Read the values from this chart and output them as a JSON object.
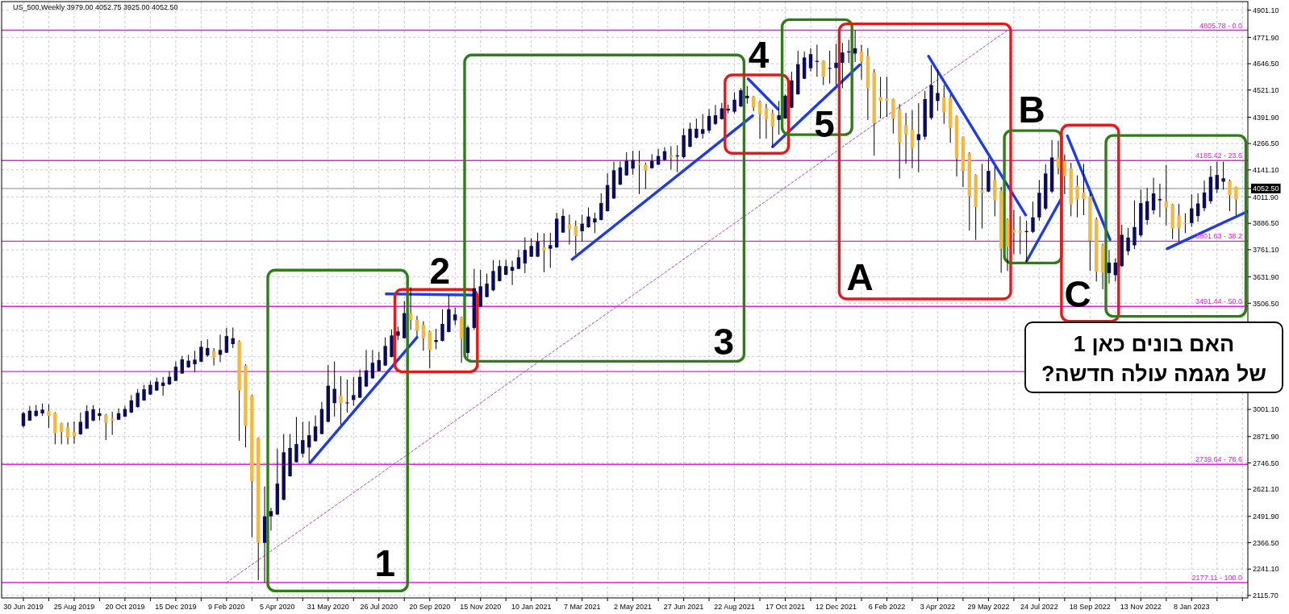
{
  "chart_data": {
    "type": "candlestick",
    "title": "US_500,Weekly  3979.00 4052.75 3925.00 4052.50",
    "xlim": [
      "2019-06-06",
      "2023-03-11"
    ],
    "ylim": [
      2104,
      4942
    ],
    "xticks": [
      {
        "value": "2019-06-30",
        "label": "30 Jun 2019"
      },
      {
        "value": "2019-07-28",
        "label": null
      },
      {
        "value": "2019-08-25",
        "label": "25 Aug 2019"
      },
      {
        "value": "2019-09-22",
        "label": null
      },
      {
        "value": "2019-10-20",
        "label": "20 Oct 2019"
      },
      {
        "value": "2019-11-17",
        "label": null
      },
      {
        "value": "2019-12-15",
        "label": "15 Dec 2019"
      },
      {
        "value": "2020-01-12",
        "label": null
      },
      {
        "value": "2020-02-09",
        "label": "9 Feb 2020"
      },
      {
        "value": "2020-03-08",
        "label": null
      },
      {
        "value": "2020-04-05",
        "label": "5 Apr 2020"
      },
      {
        "value": "2020-05-03",
        "label": null
      },
      {
        "value": "2020-05-31",
        "label": "31 May 2020"
      },
      {
        "value": "2020-06-28",
        "label": null
      },
      {
        "value": "2020-07-26",
        "label": "26 Jul 2020"
      },
      {
        "value": "2020-08-23",
        "label": null
      },
      {
        "value": "2020-09-20",
        "label": "20 Sep 2020"
      },
      {
        "value": "2020-10-18",
        "label": null
      },
      {
        "value": "2020-11-15",
        "label": "15 Nov 2020"
      },
      {
        "value": "2020-12-13",
        "label": null
      },
      {
        "value": "2021-01-10",
        "label": "10 Jan 2021"
      },
      {
        "value": "2021-02-07",
        "label": null
      },
      {
        "value": "2021-03-07",
        "label": "7 Mar 2021"
      },
      {
        "value": "2021-04-04",
        "label": null
      },
      {
        "value": "2021-05-02",
        "label": "2 May 2021"
      },
      {
        "value": "2021-05-30",
        "label": null
      },
      {
        "value": "2021-06-27",
        "label": "27 Jun 2021"
      },
      {
        "value": "2021-07-25",
        "label": null
      },
      {
        "value": "2021-08-22",
        "label": "22 Aug 2021"
      },
      {
        "value": "2021-09-19",
        "label": null
      },
      {
        "value": "2021-10-17",
        "label": "17 Oct 2021"
      },
      {
        "value": "2021-11-14",
        "label": null
      },
      {
        "value": "2021-12-12",
        "label": "12 Dec 2021"
      },
      {
        "value": "2022-01-09",
        "label": null
      },
      {
        "value": "2022-02-06",
        "label": "6 Feb 2022"
      },
      {
        "value": "2022-03-06",
        "label": null
      },
      {
        "value": "2022-04-03",
        "label": "3 Apr 2022"
      },
      {
        "value": "2022-05-01",
        "label": null
      },
      {
        "value": "2022-05-29",
        "label": "29 May 2022"
      },
      {
        "value": "2022-06-26",
        "label": null
      },
      {
        "value": "2022-07-24",
        "label": "24 Jul 2022"
      },
      {
        "value": "2022-08-21",
        "label": null
      },
      {
        "value": "2022-09-18",
        "label": "18 Sep 2022"
      },
      {
        "value": "2022-10-16",
        "label": null
      },
      {
        "value": "2022-11-13",
        "label": "13 Nov 2022"
      },
      {
        "value": "2022-12-11",
        "label": null
      },
      {
        "value": "2023-01-08",
        "label": "8 Jan 2023"
      },
      {
        "value": "2023-02-05",
        "label": null
      },
      {
        "value": "2023-03-05",
        "label": null
      }
    ],
    "yticks": [
      {
        "value": 2115.7,
        "label": "2115.70"
      },
      {
        "value": 2241.1,
        "label": "2241.10"
      },
      {
        "value": 2366.5,
        "label": "2366.50"
      },
      {
        "value": 2491.9,
        "label": "2491.90"
      },
      {
        "value": 2621.1,
        "label": "2621.10"
      },
      {
        "value": 2746.5,
        "label": "2746.50"
      },
      {
        "value": 2871.9,
        "label": "2871.90"
      },
      {
        "value": 3001.1,
        "label": "3001.10"
      },
      {
        "value": 3126.5,
        "label": null
      },
      {
        "value": 3251.9,
        "label": null
      },
      {
        "value": 3377.3,
        "label": null
      },
      {
        "value": 3506.5,
        "label": "3506.50"
      },
      {
        "value": 3631.9,
        "label": "3631.90"
      },
      {
        "value": 3761.1,
        "label": "3761.10"
      },
      {
        "value": 3886.5,
        "label": "3886.50"
      },
      {
        "value": 4011.9,
        "label": "4011.90"
      },
      {
        "value": 4052.5,
        "label": "4052.50"
      },
      {
        "value": 4141.1,
        "label": "4141.10"
      },
      {
        "value": 4266.5,
        "label": "4266.50"
      },
      {
        "value": 4391.9,
        "label": "4391.90"
      },
      {
        "value": 4521.1,
        "label": "4521.10"
      },
      {
        "value": 4646.5,
        "label": "4646.50"
      },
      {
        "value": 4771.9,
        "label": "4771.90"
      },
      {
        "value": 4901.1,
        "label": "4901.10"
      }
    ],
    "grid": true,
    "ref_lines": [
      {
        "axis": "y",
        "value": 4805.78,
        "label": "4805.78 - 0.0",
        "color": "#e01fe0"
      },
      {
        "axis": "y",
        "value": 4185.42,
        "label": "4185.42 - 23.6",
        "color": "#e01fe0"
      },
      {
        "axis": "y",
        "value": 3801.63,
        "label": "3801.63 - 38.2",
        "color": "#e01fe0"
      },
      {
        "axis": "y",
        "value": 3491.44,
        "label": "3491.44 - 50.0",
        "color": "#e01fe0"
      },
      {
        "axis": "y",
        "value": 3181.25,
        "color": "#e01fe0"
      },
      {
        "axis": "y",
        "value": 2739.64,
        "label": "2739.64 - 78.6",
        "color": "#e01fe0"
      },
      {
        "axis": "y",
        "value": 2177.11,
        "label": "2177.11 - 100.0",
        "color": "#e01fe0"
      },
      {
        "axis": "y",
        "value": 4052.5,
        "color": "#b4b4b4"
      }
    ],
    "series": [
      {
        "x": [
          "2019-06-30",
          "2019-07-07",
          "2019-07-14",
          "2019-07-21",
          "2019-07-28",
          "2019-08-04",
          "2019-08-11",
          "2019-08-18",
          "2019-08-25",
          "2019-09-01",
          "2019-09-08",
          "2019-09-15",
          "2019-09-22",
          "2019-09-29",
          "2019-10-06",
          "2019-10-13",
          "2019-10-20",
          "2019-10-27",
          "2019-11-03",
          "2019-11-10",
          "2019-11-17",
          "2019-11-24",
          "2019-12-01",
          "2019-12-08",
          "2019-12-15",
          "2019-12-22",
          "2019-12-29",
          "2020-01-05",
          "2020-01-12",
          "2020-01-19",
          "2020-01-26",
          "2020-02-02",
          "2020-02-09",
          "2020-02-16",
          "2020-02-23",
          "2020-03-01",
          "2020-03-08",
          "2020-03-15",
          "2020-03-22",
          "2020-03-29",
          "2020-04-05",
          "2020-04-12",
          "2020-04-19",
          "2020-04-26",
          "2020-05-03",
          "2020-05-10",
          "2020-05-17",
          "2020-05-24",
          "2020-05-31",
          "2020-06-07",
          "2020-06-14",
          "2020-06-21",
          "2020-06-28",
          "2020-07-05",
          "2020-07-12",
          "2020-07-19",
          "2020-07-26",
          "2020-08-02",
          "2020-08-09",
          "2020-08-16",
          "2020-08-23",
          "2020-08-30",
          "2020-09-06",
          "2020-09-13",
          "2020-09-20",
          "2020-09-27",
          "2020-10-04",
          "2020-10-11",
          "2020-10-18",
          "2020-10-25",
          "2020-11-01",
          "2020-11-08",
          "2020-11-15",
          "2020-11-22",
          "2020-11-29",
          "2020-12-06",
          "2020-12-13",
          "2020-12-20",
          "2020-12-27",
          "2021-01-03",
          "2021-01-10",
          "2021-01-17",
          "2021-01-24",
          "2021-01-31",
          "2021-02-07",
          "2021-02-14",
          "2021-02-21",
          "2021-02-28",
          "2021-03-07",
          "2021-03-14",
          "2021-03-21",
          "2021-03-28",
          "2021-04-04",
          "2021-04-11",
          "2021-04-18",
          "2021-04-25",
          "2021-05-02",
          "2021-05-09",
          "2021-05-16",
          "2021-05-23",
          "2021-05-30",
          "2021-06-06",
          "2021-06-13",
          "2021-06-20",
          "2021-06-27",
          "2021-07-04",
          "2021-07-11",
          "2021-07-18",
          "2021-07-25",
          "2021-08-01",
          "2021-08-08",
          "2021-08-15",
          "2021-08-22",
          "2021-08-29",
          "2021-09-05",
          "2021-09-12",
          "2021-09-19",
          "2021-09-26",
          "2021-10-03",
          "2021-10-10",
          "2021-10-17",
          "2021-10-24",
          "2021-10-31",
          "2021-11-07",
          "2021-11-14",
          "2021-11-21",
          "2021-11-28",
          "2021-12-05",
          "2021-12-12",
          "2021-12-19",
          "2021-12-26",
          "2022-01-02",
          "2022-01-09",
          "2022-01-16",
          "2022-01-23",
          "2022-01-30",
          "2022-02-06",
          "2022-02-13",
          "2022-02-20",
          "2022-02-27",
          "2022-03-06",
          "2022-03-13",
          "2022-03-20",
          "2022-03-27",
          "2022-04-03",
          "2022-04-10",
          "2022-04-17",
          "2022-04-24",
          "2022-05-01",
          "2022-05-08",
          "2022-05-15",
          "2022-05-22",
          "2022-05-29",
          "2022-06-05",
          "2022-06-12",
          "2022-06-19",
          "2022-06-26",
          "2022-07-03",
          "2022-07-10",
          "2022-07-17",
          "2022-07-24",
          "2022-07-31",
          "2022-08-07",
          "2022-08-14",
          "2022-08-21",
          "2022-08-28",
          "2022-09-04",
          "2022-09-11",
          "2022-09-18",
          "2022-09-25",
          "2022-10-02",
          "2022-10-09",
          "2022-10-16",
          "2022-10-23",
          "2022-10-30",
          "2022-11-06",
          "2022-11-13",
          "2022-11-20",
          "2022-11-27",
          "2022-12-04",
          "2022-12-11",
          "2022-12-18",
          "2022-12-25",
          "2023-01-01",
          "2023-01-08",
          "2023-01-15",
          "2023-01-22",
          "2023-01-29",
          "2023-02-05",
          "2023-02-12",
          "2023-02-19",
          "2023-02-26"
        ],
        "ohlc": [
          [
            2922,
            2990,
            2915,
            2983
          ],
          [
            2948,
            3018,
            2946,
            2995
          ],
          [
            2970,
            3022,
            2966,
            2995
          ],
          [
            2982,
            3029,
            2970,
            3000
          ],
          [
            2993,
            3025,
            2913,
            2970
          ],
          [
            2985,
            2988,
            2835,
            2888
          ],
          [
            2935,
            2938,
            2835,
            2894
          ],
          [
            2916,
            2939,
            2835,
            2867
          ],
          [
            2893,
            2944,
            2838,
            2873
          ],
          [
            2883,
            2986,
            2880,
            2942
          ],
          [
            2910,
            3021,
            2908,
            2993
          ],
          [
            2948,
            3021,
            2944,
            3002
          ],
          [
            2970,
            3006,
            2948,
            2983
          ],
          [
            2976,
            2980,
            2855,
            2938
          ],
          [
            2957,
            2990,
            2880,
            2948
          ],
          [
            2952,
            3006,
            2950,
            2983
          ],
          [
            2967,
            3018,
            2965,
            3003
          ],
          [
            2986,
            3069,
            2984,
            3044
          ],
          [
            3012,
            3097,
            3010,
            3080
          ],
          [
            3044,
            3118,
            3042,
            3097
          ],
          [
            3072,
            3136,
            3070,
            3118
          ],
          [
            3091,
            3152,
            3089,
            3133
          ],
          [
            3113,
            3156,
            3067,
            3129
          ],
          [
            3120,
            3182,
            3118,
            3156
          ],
          [
            3137,
            3229,
            3135,
            3204
          ],
          [
            3172,
            3255,
            3170,
            3239
          ],
          [
            3201,
            3261,
            3199,
            3233
          ],
          [
            3216,
            3280,
            3178,
            3238
          ],
          [
            3228,
            3327,
            3226,
            3299
          ],
          [
            3258,
            3335,
            3251,
            3293
          ],
          [
            3280,
            3293,
            3210,
            3248
          ],
          [
            3261,
            3357,
            3226,
            3284
          ],
          [
            3271,
            3389,
            3269,
            3350
          ],
          [
            3312,
            3391,
            3293,
            3340
          ],
          [
            3325,
            3330,
            2852,
            3092
          ],
          [
            3210,
            3216,
            2820,
            2922
          ],
          [
            3066,
            3070,
            2392,
            2660
          ],
          [
            2865,
            2868,
            2188,
            2366
          ],
          [
            2366,
            2635,
            2177,
            2492
          ],
          [
            2492,
            2533,
            2424,
            2517
          ],
          [
            2501,
            2814,
            2499,
            2648
          ],
          [
            2571,
            2884,
            2569,
            2797
          ],
          [
            2683,
            2884,
            2681,
            2818
          ],
          [
            2750,
            2965,
            2748,
            2836
          ],
          [
            2791,
            2942,
            2773,
            2855
          ],
          [
            2820,
            2944,
            2750,
            2878
          ],
          [
            2850,
            2973,
            2848,
            2920
          ],
          [
            2884,
            3037,
            2882,
            3003
          ],
          [
            2942,
            3212,
            2940,
            3114
          ],
          [
            3031,
            3229,
            2967,
            3099
          ],
          [
            3066,
            3159,
            2929,
            3031
          ],
          [
            3030,
            3143,
            2986,
            3034
          ],
          [
            3046,
            3156,
            3018,
            3069
          ],
          [
            3057,
            3191,
            3055,
            3156
          ],
          [
            3110,
            3284,
            3108,
            3187
          ],
          [
            3149,
            3284,
            3147,
            3223
          ],
          [
            3184,
            3274,
            3182,
            3236
          ],
          [
            3210,
            3344,
            3208,
            3303
          ],
          [
            3251,
            3382,
            3249,
            3353
          ],
          [
            3352,
            3395,
            3330,
            3372
          ],
          [
            3340,
            3517,
            3338,
            3459
          ],
          [
            3459,
            3583,
            3380,
            3427
          ],
          [
            3427,
            3446,
            3350,
            3376
          ],
          [
            3402,
            3421,
            3280,
            3340
          ],
          [
            3372,
            3376,
            3197,
            3284
          ],
          [
            3322,
            3385,
            3287,
            3331
          ],
          [
            3327,
            3478,
            3325,
            3408
          ],
          [
            3370,
            3545,
            3368,
            3478
          ],
          [
            3425,
            3485,
            3402,
            3453
          ],
          [
            3440,
            3443,
            3223,
            3338
          ],
          [
            3270,
            3400,
            3248,
            3391
          ],
          [
            3389,
            3670,
            3380,
            3578
          ],
          [
            3491,
            3665,
            3489,
            3587
          ],
          [
            3536,
            3647,
            3534,
            3600
          ],
          [
            3568,
            3711,
            3563,
            3660
          ],
          [
            3612,
            3711,
            3610,
            3683
          ],
          [
            3642,
            3713,
            3640,
            3683
          ],
          [
            3661,
            3709,
            3593,
            3679
          ],
          [
            3670,
            3762,
            3668,
            3725
          ],
          [
            3696,
            3820,
            3650,
            3760
          ],
          [
            3728,
            3816,
            3726,
            3779
          ],
          [
            3728,
            3842,
            3726,
            3800
          ],
          [
            3772,
            3839,
            3654,
            3757
          ],
          [
            3766,
            3842,
            3675,
            3783
          ],
          [
            3772,
            3937,
            3770,
            3909
          ],
          [
            3843,
            3955,
            3841,
            3922
          ],
          [
            3881,
            3928,
            3785,
            3859
          ],
          [
            3874,
            3900,
            3738,
            3826
          ],
          [
            3849,
            3927,
            3800,
            3885
          ],
          [
            3868,
            3962,
            3866,
            3919
          ],
          [
            3891,
            3938,
            3840,
            3910
          ],
          [
            3903,
            4030,
            3901,
            3983
          ],
          [
            3945,
            4125,
            3943,
            4069
          ],
          [
            4005,
            4180,
            4003,
            4139
          ],
          [
            4071,
            4181,
            4069,
            4153
          ],
          [
            4115,
            4225,
            4113,
            4184
          ],
          [
            4147,
            4232,
            4118,
            4188
          ],
          [
            4171,
            4232,
            4026,
            4165
          ],
          [
            4166,
            4176,
            4050,
            4138
          ],
          [
            4149,
            4216,
            4147,
            4184
          ],
          [
            4166,
            4241,
            4164,
            4207
          ],
          [
            4188,
            4249,
            4186,
            4230
          ],
          [
            4209,
            4254,
            4143,
            4200
          ],
          [
            4205,
            4258,
            4130,
            4210
          ],
          [
            4202,
            4338,
            4195,
            4306
          ],
          [
            4251,
            4366,
            4249,
            4337
          ],
          [
            4294,
            4385,
            4290,
            4337
          ],
          [
            4313,
            4407,
            4290,
            4335
          ],
          [
            4328,
            4430,
            4317,
            4398
          ],
          [
            4360,
            4450,
            4355,
            4401
          ],
          [
            4383,
            4460,
            4380,
            4434
          ],
          [
            4424,
            4452,
            4410,
            4432
          ],
          [
            4418,
            4510,
            4410,
            4475
          ],
          [
            4443,
            4530,
            4440,
            4520
          ],
          [
            4482,
            4541,
            4456,
            4494
          ],
          [
            4490,
            4494,
            4421,
            4439
          ],
          [
            4465,
            4470,
            4290,
            4405
          ],
          [
            4434,
            4456,
            4290,
            4383
          ],
          [
            4411,
            4428,
            4251,
            4347
          ],
          [
            4379,
            4469,
            4309,
            4401
          ],
          [
            4386,
            4500,
            4384,
            4494
          ],
          [
            4437,
            4609,
            4435,
            4567
          ],
          [
            4501,
            4708,
            4499,
            4644
          ],
          [
            4575,
            4705,
            4573,
            4676
          ],
          [
            4625,
            4720,
            4610,
            4692
          ],
          [
            4655,
            4737,
            4584,
            4660
          ],
          [
            4660,
            4662,
            4545,
            4584
          ],
          [
            4622,
            4708,
            4552,
            4626
          ],
          [
            4626,
            4741,
            4545,
            4651
          ],
          [
            4651,
            4745,
            4530,
            4700
          ],
          [
            4700,
            4760,
            4650,
            4705
          ],
          [
            4695,
            4806,
            4654,
            4720
          ],
          [
            4705,
            4737,
            4571,
            4657
          ],
          [
            4682,
            4720,
            4379,
            4529
          ],
          [
            4605,
            4620,
            4209,
            4363
          ],
          [
            4488,
            4584,
            4386,
            4469
          ],
          [
            4481,
            4584,
            4393,
            4469
          ],
          [
            4478,
            4480,
            4314,
            4386
          ],
          [
            4430,
            4454,
            4100,
            4271
          ],
          [
            4354,
            4412,
            4170,
            4309
          ],
          [
            4332,
            4425,
            4150,
            4243
          ],
          [
            4283,
            4459,
            4130,
            4311
          ],
          [
            4299,
            4517,
            4285,
            4478
          ],
          [
            4388,
            4640,
            4380,
            4545
          ],
          [
            4469,
            4620,
            4422,
            4507
          ],
          [
            4485,
            4545,
            4360,
            4414
          ],
          [
            4484,
            4500,
            4270,
            4341
          ],
          [
            4396,
            4400,
            4110,
            4196
          ],
          [
            4299,
            4300,
            4060,
            4136
          ],
          [
            4219,
            4225,
            3852,
            4015
          ],
          [
            4117,
            4120,
            3808,
            3964
          ],
          [
            4043,
            4170,
            3862,
            4033
          ],
          [
            4038,
            4199,
            4035,
            4136
          ],
          [
            4092,
            4156,
            3920,
            3996
          ],
          [
            4041,
            4060,
            3651,
            3766
          ],
          [
            3905,
            3910,
            3660,
            3775
          ],
          [
            3855,
            3951,
            3740,
            3843
          ],
          [
            3851,
            3920,
            3740,
            3842
          ],
          [
            3845,
            3900,
            3700,
            3850
          ],
          [
            3846,
            3990,
            3840,
            3915
          ],
          [
            3915,
            4093,
            3900,
            4032
          ],
          [
            3957,
            4168,
            3950,
            4124
          ],
          [
            4038,
            4283,
            4030,
            4200
          ],
          [
            4200,
            4280,
            4120,
            4150
          ],
          [
            4184,
            4215,
            4025,
            4111
          ],
          [
            4149,
            4175,
            3920,
            3977
          ],
          [
            4066,
            4115,
            3915,
            4000
          ],
          [
            4034,
            4170,
            3925,
            4002
          ],
          [
            4015,
            4030,
            3660,
            3804
          ],
          [
            3906,
            3915,
            3610,
            3657
          ],
          [
            3782,
            3790,
            3573,
            3652
          ],
          [
            3650,
            3760,
            3600,
            3700
          ],
          [
            3640,
            3720,
            3610,
            3700
          ],
          [
            3683,
            3880,
            3680,
            3832
          ],
          [
            3754,
            3865,
            3735,
            3819
          ],
          [
            3782,
            3996,
            3765,
            3869
          ],
          [
            3830,
            4047,
            3820,
            3983
          ],
          [
            3903,
            4055,
            3880,
            3992
          ],
          [
            3949,
            4104,
            3930,
            4029
          ],
          [
            3996,
            4075,
            3916,
            4002
          ],
          [
            3992,
            4165,
            3877,
            3962
          ],
          [
            3977,
            3980,
            3812,
            3862
          ],
          [
            3925,
            3980,
            3800,
            3862
          ],
          [
            3888,
            3935,
            3840,
            3885
          ],
          [
            3888,
            4025,
            3870,
            3958
          ],
          [
            3921,
            4030,
            3895,
            3981
          ],
          [
            3959,
            4090,
            3945,
            4033
          ],
          [
            3992,
            4160,
            3980,
            4108
          ],
          [
            4048,
            4180,
            4030,
            4117
          ],
          [
            4085,
            4180,
            4047,
            4101
          ],
          [
            4089,
            4095,
            3945,
            4020
          ],
          [
            4060,
            4062,
            3925,
            4000
          ]
        ],
        "colors": [
          "#0b0b5c",
          "#0b0b5c",
          "#0b0b5c",
          "#0b0b5c",
          "#f3b744",
          "#f3b744",
          "#f3b744",
          "#f3b744",
          "#f3b744",
          "#0b0b5c",
          "#0b0b5c",
          "#0b0b5c",
          "#0b0b5c",
          "#f3b744",
          "#f3b744",
          "#0b0b5c",
          "#0b0b5c",
          "#0b0b5c",
          "#0b0b5c",
          "#0b0b5c",
          "#0b0b5c",
          "#0b0b5c",
          "#0b0b5c",
          "#0b0b5c",
          "#0b0b5c",
          "#0b0b5c",
          "#0b0b5c",
          "#0b0b5c",
          "#0b0b5c",
          "#0b0b5c",
          "#f3b744",
          "#0b0b5c",
          "#0b0b5c",
          "#0b0b5c",
          "#f3b744",
          "#f3b744",
          "#f3b744",
          "#f3b744",
          "#0b0b5c",
          "#0b0b5c",
          "#0b0b5c",
          "#0b0b5c",
          "#0b0b5c",
          "#0b0b5c",
          "#0b0b5c",
          "#0b0b5c",
          "#0b0b5c",
          "#0b0b5c",
          "#0b0b5c",
          "#0b0b5c",
          "#f3b744",
          "#0b0b5c",
          "#0b0b5c",
          "#0b0b5c",
          "#0b0b5c",
          "#0b0b5c",
          "#0b0b5c",
          "#0b0b5c",
          "#0b0b5c",
          "#0b0b5c",
          "#0b0b5c",
          "#f3b744",
          "#f3b744",
          "#f3b744",
          "#f3b744",
          "#0b0b5c",
          "#0b0b5c",
          "#0b0b5c",
          "#0b0b5c",
          "#f3b744",
          "#0b0b5c",
          "#0b0b5c",
          "#0b0b5c",
          "#0b0b5c",
          "#0b0b5c",
          "#0b0b5c",
          "#0b0b5c",
          "#0b0b5c",
          "#0b0b5c",
          "#0b0b5c",
          "#0b0b5c",
          "#0b0b5c",
          "#f3b744",
          "#0b0b5c",
          "#0b0b5c",
          "#0b0b5c",
          "#f3b744",
          "#f3b744",
          "#0b0b5c",
          "#0b0b5c",
          "#0b0b5c",
          "#0b0b5c",
          "#0b0b5c",
          "#0b0b5c",
          "#0b0b5c",
          "#0b0b5c",
          "#0b0b5c",
          "#f3b744",
          "#f3b744",
          "#0b0b5c",
          "#0b0b5c",
          "#0b0b5c",
          "#f3b744",
          "#0b0b5c",
          "#0b0b5c",
          "#0b0b5c",
          "#0b0b5c",
          "#0b0b5c",
          "#0b0b5c",
          "#0b0b5c",
          "#0b0b5c",
          "#0b0b5c",
          "#0b0b5c",
          "#0b0b5c",
          "#0b0b5c",
          "#f3b744",
          "#f3b744",
          "#f3b744",
          "#f3b744",
          "#0b0b5c",
          "#0b0b5c",
          "#0b0b5c",
          "#0b0b5c",
          "#0b0b5c",
          "#0b0b5c",
          "#0b0b5c",
          "#f3b744",
          "#0b0b5c",
          "#0b0b5c",
          "#0b0b5c",
          "#0b0b5c",
          "#0b0b5c",
          "#f3b744",
          "#f3b744",
          "#f3b744",
          "#f3b744",
          "#f3b744",
          "#f3b744",
          "#f3b744",
          "#f3b744",
          "#f3b744",
          "#0b0b5c",
          "#0b0b5c",
          "#0b0b5c",
          "#0b0b5c",
          "#f3b744",
          "#f3b744",
          "#f3b744",
          "#f3b744",
          "#f3b744",
          "#f3b744",
          "#f3b744",
          "#0b0b5c",
          "#f3b744",
          "#f3b744",
          "#f3b744",
          "#f3b744",
          "#f3b744",
          "#0b0b5c",
          "#0b0b5c",
          "#0b0b5c",
          "#0b0b5c",
          "#0b0b5c",
          "#f3b744",
          "#f3b744",
          "#f3b744",
          "#f3b744",
          "#f3b744",
          "#f3b744",
          "#f3b744",
          "#f3b744",
          "#0b0b5c",
          "#0b0b5c",
          "#0b0b5c",
          "#0b0b5c",
          "#0b0b5c",
          "#0b0b5c",
          "#0b0b5c",
          "#0b0b5c",
          "#0b0b5c",
          "#f3b744",
          "#f3b744",
          "#f3b744",
          "#f3b744",
          "#0b0b5c",
          "#0b0b5c",
          "#0b0b5c",
          "#0b0b5c",
          "#0b0b5c",
          "#0b0b5c",
          "#f3b744",
          "#f3b744"
        ]
      },
      {
        "type": "line",
        "color": "#b044c4",
        "line_style": "dashed",
        "x": [
          "2020-02-09",
          "2022-06-19"
        ],
        "values": [
          2177.11,
          4805.78
        ]
      },
      {
        "type": "line",
        "color": "#1e3ce6",
        "x": [
          "2020-05-11",
          "2020-09-06"
        ],
        "values": [
          2747,
          3344
        ]
      },
      {
        "type": "line",
        "color": "#1e3ce6",
        "x": [
          "2020-08-03",
          "2020-11-11"
        ],
        "values": [
          3551,
          3545
        ]
      },
      {
        "type": "line",
        "color": "#1e3ce6",
        "x": [
          "2021-02-24",
          "2021-09-11"
        ],
        "values": [
          3715,
          4399
        ]
      },
      {
        "type": "line",
        "color": "#1e3ce6",
        "x": [
          "2021-09-06",
          "2021-10-09"
        ],
        "values": [
          4575,
          4430
        ]
      },
      {
        "type": "line",
        "color": "#1e3ce6",
        "x": [
          "2021-10-03",
          "2022-01-07"
        ],
        "values": [
          4251,
          4641
        ]
      },
      {
        "type": "line",
        "color": "#1e3ce6",
        "x": [
          "2022-03-24",
          "2022-07-09"
        ],
        "values": [
          4682,
          3926
        ]
      },
      {
        "type": "line",
        "color": "#1e3ce6",
        "x": [
          "2022-07-10",
          "2022-08-17"
        ],
        "values": [
          3706,
          4002
        ]
      },
      {
        "type": "line",
        "color": "#1e3ce6",
        "x": [
          "2022-08-24",
          "2022-10-10"
        ],
        "values": [
          4303,
          3809
        ]
      },
      {
        "type": "line",
        "color": "#1e3ce6",
        "x": [
          "2022-12-12",
          "2023-03-11"
        ],
        "values": [
          3766,
          3944
        ]
      }
    ],
    "annotations": [
      "1",
      "2",
      "3",
      "4",
      "5",
      "A",
      "B",
      "C",
      "האם בונים כאן 1",
      "של מגמה עולה חדשה?"
    ]
  }
}
